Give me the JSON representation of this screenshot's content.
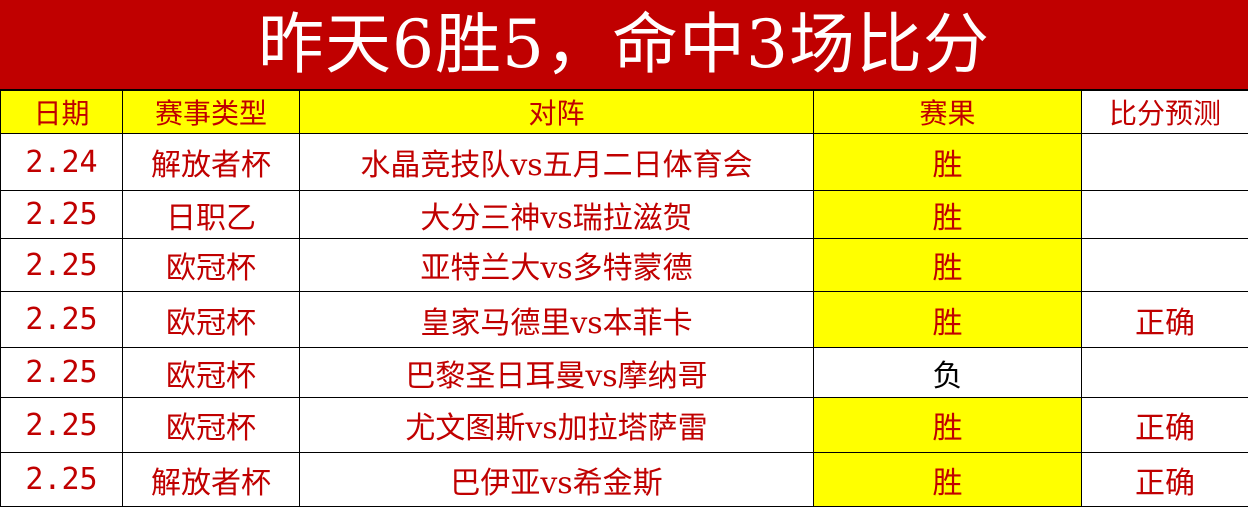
{
  "title": "昨天6胜5，命中3场比分",
  "headers": [
    "日期",
    "赛事类型",
    "对阵",
    "赛果",
    "比分预测"
  ],
  "colors": {
    "title_bg": "#c00000",
    "header_bg": "#ffff00",
    "win_bg": "#ffff00",
    "text": "#c00000"
  },
  "rows": [
    {
      "date": "2.24",
      "league": "解放者杯",
      "match": "水晶竞技队vs五月二日体育会",
      "result": "胜",
      "prediction": ""
    },
    {
      "date": "2.25",
      "league": "日职乙",
      "match": "大分三神vs瑞拉滋贺",
      "result": "胜",
      "prediction": ""
    },
    {
      "date": "2.25",
      "league": "欧冠杯",
      "match": "亚特兰大vs多特蒙德",
      "result": "胜",
      "prediction": ""
    },
    {
      "date": "2.25",
      "league": "欧冠杯",
      "match": "皇家马德里vs本菲卡",
      "result": "胜",
      "prediction": "正确"
    },
    {
      "date": "2.25",
      "league": "欧冠杯",
      "match": "巴黎圣日耳曼vs摩纳哥",
      "result": "负",
      "prediction": ""
    },
    {
      "date": "2.25",
      "league": "欧冠杯",
      "match": "尤文图斯vs加拉塔萨雷",
      "result": "胜",
      "prediction": "正确"
    },
    {
      "date": "2.25",
      "league": "解放者杯",
      "match": "巴伊亚vs希金斯",
      "result": "胜",
      "prediction": "正确"
    }
  ]
}
